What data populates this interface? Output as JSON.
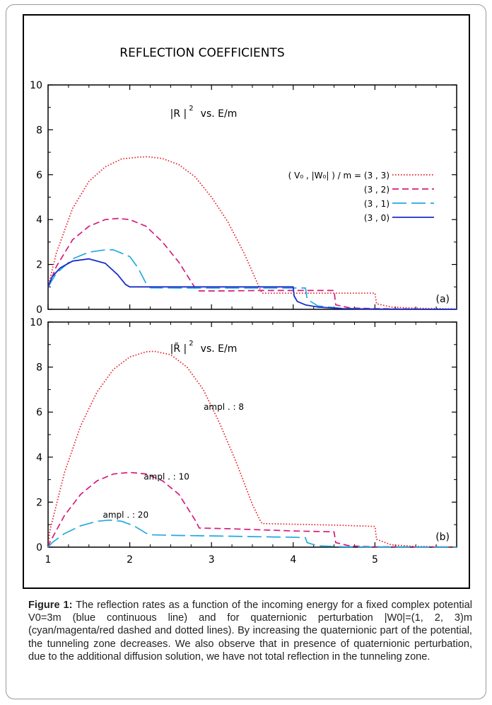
{
  "figure": {
    "main_title": "REFLECTION COEFFICIENTS"
  },
  "chart_data": [
    {
      "id": "a",
      "type": "line",
      "panel_label": "(a)",
      "title": "|R |² vs. E/m",
      "title_parts": {
        "lead": "|R |",
        "sup": "2",
        "tail": "vs. E/m"
      },
      "xlabel": "",
      "ylabel": "",
      "xlim": [
        1,
        6
      ],
      "ylim": [
        0,
        10
      ],
      "x_ticks": [
        1,
        2,
        3,
        4,
        5
      ],
      "y_ticks": [
        0,
        2,
        4,
        6,
        8,
        10
      ],
      "x_tick_labels_shown": false,
      "grid": false,
      "legend": {
        "placement": "upper-right",
        "header": "( V₀ , |W₀| ) / m  = (3 , 3)",
        "entries": [
          "(3 , 3)",
          "(3 , 2)",
          "(3 , 1)",
          "(3 , 0)"
        ]
      },
      "series": [
        {
          "name": "(3 , 3)",
          "color": "#e8202a",
          "dash": "dotted",
          "x": [
            1,
            1.1,
            1.3,
            1.5,
            1.7,
            1.9,
            2.1,
            2.22,
            2.4,
            2.6,
            2.8,
            3.0,
            3.2,
            3.4,
            3.6,
            3.62,
            4.0,
            4.5,
            5.0,
            5.02,
            5.2,
            5.5,
            6.0
          ],
          "y": [
            1.0,
            2.5,
            4.5,
            5.7,
            6.35,
            6.7,
            6.78,
            6.8,
            6.72,
            6.45,
            5.9,
            5.0,
            3.9,
            2.5,
            0.85,
            0.72,
            0.72,
            0.72,
            0.72,
            0.25,
            0.1,
            0.05,
            0.02
          ]
        },
        {
          "name": "(3 , 2)",
          "color": "#d81b7c",
          "dash": "dashed",
          "x": [
            1,
            1.1,
            1.3,
            1.5,
            1.7,
            1.85,
            2.0,
            2.2,
            2.4,
            2.6,
            2.8,
            2.85,
            3.2,
            3.6,
            4.0,
            4.5,
            4.52,
            4.7,
            5.0,
            5.5,
            6.0
          ],
          "y": [
            1.0,
            1.9,
            3.1,
            3.7,
            4.0,
            4.05,
            4.0,
            3.7,
            3.0,
            2.1,
            0.95,
            0.82,
            0.82,
            0.84,
            0.84,
            0.84,
            0.2,
            0.06,
            0.03,
            0.01,
            0.0
          ]
        },
        {
          "name": "(3 , 1)",
          "color": "#22a9e0",
          "dash": "longdash",
          "x": [
            1,
            1.1,
            1.3,
            1.5,
            1.7,
            1.8,
            2.0,
            2.1,
            2.2,
            2.25,
            2.6,
            3.0,
            3.5,
            4.0,
            4.15,
            4.17,
            4.3,
            4.6,
            5.0,
            6.0
          ],
          "y": [
            1.0,
            1.6,
            2.25,
            2.55,
            2.65,
            2.65,
            2.35,
            1.85,
            1.15,
            0.96,
            0.95,
            0.95,
            0.95,
            0.95,
            0.95,
            0.45,
            0.15,
            0.04,
            0.01,
            0.0
          ]
        },
        {
          "name": "(3 , 0)",
          "color": "#1a2dc9",
          "dash": "solid",
          "x": [
            1,
            1.05,
            1.15,
            1.3,
            1.5,
            1.7,
            1.85,
            1.95,
            2.0,
            2.2,
            2.6,
            3.0,
            3.5,
            4.0,
            4.01,
            4.05,
            4.15,
            4.3,
            4.6,
            5.0,
            6.0
          ],
          "y": [
            1.0,
            1.45,
            1.85,
            2.15,
            2.25,
            2.05,
            1.55,
            1.1,
            1.0,
            1.0,
            1.0,
            1.0,
            1.0,
            1.0,
            0.6,
            0.35,
            0.2,
            0.1,
            0.03,
            0.01,
            0.0
          ]
        }
      ]
    },
    {
      "id": "b",
      "type": "line",
      "panel_label": "(b)",
      "title": "|R̃ |² vs. E/m",
      "title_parts": {
        "lead": "|R̃ |",
        "sup": "2",
        "tail": "vs. E/m"
      },
      "xlabel": "",
      "ylabel": "",
      "xlim": [
        1,
        6
      ],
      "ylim": [
        0,
        10
      ],
      "x_ticks": [
        1,
        2,
        3,
        4,
        5
      ],
      "y_ticks": [
        0,
        2,
        4,
        6,
        8,
        10
      ],
      "x_tick_labels_shown": true,
      "grid": false,
      "annotations": [
        {
          "text": "ampl . : 8",
          "x": 3.15,
          "y": 6.1,
          "color": "#e8202a"
        },
        {
          "text": "ampl . : 10",
          "x": 2.45,
          "y": 3.0,
          "color": "#d81b7c"
        },
        {
          "text": "ampl . : 20",
          "x": 1.95,
          "y": 1.3,
          "color": "#22a9e0"
        }
      ],
      "series": [
        {
          "name": "ampl . : 8",
          "color": "#e8202a",
          "dash": "dotted",
          "x": [
            1,
            1.02,
            1.2,
            1.4,
            1.6,
            1.8,
            2.0,
            2.2,
            2.3,
            2.5,
            2.7,
            2.9,
            3.1,
            3.3,
            3.5,
            3.6,
            3.62,
            4.0,
            4.5,
            5.0,
            5.02,
            5.2,
            5.5,
            6.0
          ],
          "y": [
            0.0,
            0.7,
            3.3,
            5.4,
            6.9,
            7.9,
            8.45,
            8.68,
            8.7,
            8.55,
            8.0,
            7.0,
            5.5,
            3.8,
            1.9,
            1.15,
            1.05,
            1.02,
            0.98,
            0.92,
            0.35,
            0.1,
            0.03,
            0.01
          ]
        },
        {
          "name": "ampl . : 10",
          "color": "#d81b7c",
          "dash": "dashed",
          "x": [
            1,
            1.02,
            1.2,
            1.4,
            1.6,
            1.8,
            2.0,
            2.2,
            2.4,
            2.6,
            2.8,
            2.85,
            3.2,
            3.6,
            4.0,
            4.5,
            4.52,
            4.7,
            5.0,
            5.5,
            6.0
          ],
          "y": [
            0.0,
            0.2,
            1.4,
            2.35,
            2.95,
            3.25,
            3.32,
            3.25,
            2.95,
            2.35,
            1.2,
            0.85,
            0.82,
            0.77,
            0.72,
            0.68,
            0.2,
            0.05,
            0.02,
            0.01,
            0.0
          ]
        },
        {
          "name": "ampl . : 20",
          "color": "#22a9e0",
          "dash": "longdash",
          "x": [
            1,
            1.05,
            1.2,
            1.4,
            1.6,
            1.75,
            1.9,
            2.05,
            2.2,
            2.25,
            2.6,
            3.0,
            3.5,
            4.0,
            4.15,
            4.17,
            4.3,
            4.6,
            5.0,
            6.0
          ],
          "y": [
            0.0,
            0.2,
            0.6,
            0.95,
            1.15,
            1.2,
            1.15,
            0.95,
            0.62,
            0.55,
            0.52,
            0.5,
            0.47,
            0.44,
            0.42,
            0.2,
            0.06,
            0.02,
            0.01,
            0.0
          ]
        }
      ]
    }
  ],
  "caption": {
    "label": "Figure 1:",
    "text": " The reflection rates as a function of the incoming energy for a fixed complex potential V0=3m (blue continuous line) and for quaternionic perturbation |W0|=(1, 2, 3)m (cyan/magenta/red dashed and dotted lines). By increasing the quaternionic part of the potential, the tunneling zone decreases. We also observe that in presence of quaternionic perturbation, due to the additional diffusion solution, we have not total reflection in the tunneling zone."
  }
}
